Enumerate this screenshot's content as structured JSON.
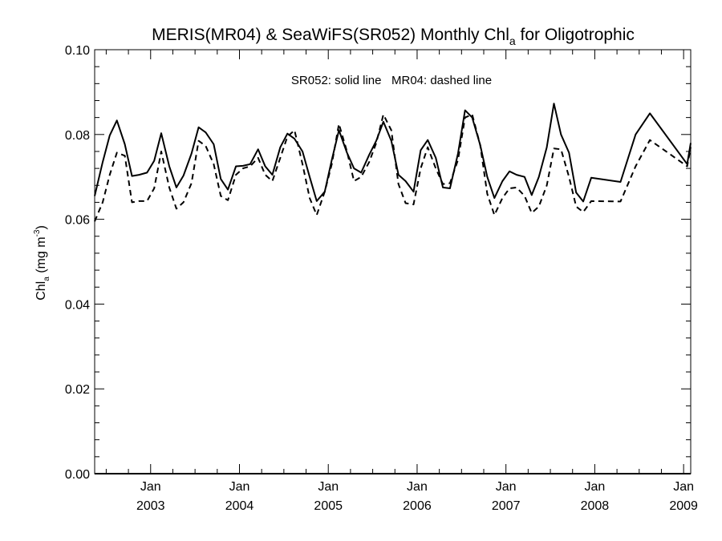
{
  "chart_data": {
    "type": "line",
    "title": {
      "main": "MERIS(MR04) & SeaWiFS(SR052) Monthly Chl",
      "subscript": "a",
      "suffix": " for Oligotrophic"
    },
    "ylabel": {
      "main": "Chl",
      "subscript": "a",
      "units_open": " (mg m",
      "units_sup": "-3",
      "units_close": ")"
    },
    "xlabel": "",
    "annotation": "SR052: solid line   MR04: dashed line",
    "x_unit": "year",
    "xlim": [
      2002.37,
      2009.08
    ],
    "ylim": [
      0.0,
      0.1
    ],
    "y_tick_labels": [
      "0.00",
      "0.02",
      "0.04",
      "0.06",
      "0.08",
      "0.10"
    ],
    "x_tick_labels": [
      {
        "month": "Jan",
        "year": "2003"
      },
      {
        "month": "Jan",
        "year": "2004"
      },
      {
        "month": "Jan",
        "year": "2005"
      },
      {
        "month": "Jan",
        "year": "2006"
      },
      {
        "month": "Jan",
        "year": "2007"
      },
      {
        "month": "Jan",
        "year": "2008"
      },
      {
        "month": "Jan",
        "year": "2009"
      }
    ],
    "grid": false,
    "series": [
      {
        "name": "SR052",
        "style": "solid",
        "color": "#000000",
        "x": [
          2002.37,
          2002.46,
          2002.54,
          2002.62,
          2002.71,
          2002.79,
          2002.87,
          2002.96,
          2003.04,
          2003.12,
          2003.21,
          2003.29,
          2003.37,
          2003.46,
          2003.54,
          2003.62,
          2003.71,
          2003.79,
          2003.87,
          2003.96,
          2004.04,
          2004.12,
          2004.21,
          2004.29,
          2004.37,
          2004.46,
          2004.54,
          2004.62,
          2004.71,
          2004.79,
          2004.87,
          2004.96,
          2005.04,
          2005.12,
          2005.21,
          2005.29,
          2005.37,
          2005.46,
          2005.54,
          2005.62,
          2005.71,
          2005.79,
          2005.87,
          2005.96,
          2006.04,
          2006.12,
          2006.21,
          2006.29,
          2006.37,
          2006.46,
          2006.54,
          2006.62,
          2006.71,
          2006.79,
          2006.87,
          2006.96,
          2007.04,
          2007.12,
          2007.21,
          2007.29,
          2007.37,
          2007.46,
          2007.54,
          2007.62,
          2007.71,
          2007.79,
          2007.87,
          2007.96,
          2008.29,
          2008.46,
          2008.62,
          2009.04,
          2009.08
        ],
        "y": [
          0.0655,
          0.0735,
          0.0798,
          0.0833,
          0.0777,
          0.0702,
          0.0705,
          0.071,
          0.0738,
          0.0803,
          0.0725,
          0.0675,
          0.0703,
          0.0755,
          0.0817,
          0.0805,
          0.0777,
          0.0695,
          0.067,
          0.0725,
          0.0726,
          0.073,
          0.0765,
          0.0725,
          0.0705,
          0.077,
          0.0802,
          0.079,
          0.076,
          0.07,
          0.0643,
          0.0665,
          0.074,
          0.081,
          0.0757,
          0.072,
          0.071,
          0.0752,
          0.0785,
          0.083,
          0.0785,
          0.0705,
          0.069,
          0.0665,
          0.0763,
          0.0787,
          0.0745,
          0.0675,
          0.0673,
          0.0755,
          0.0857,
          0.084,
          0.0775,
          0.07,
          0.065,
          0.069,
          0.0713,
          0.0705,
          0.07,
          0.0657,
          0.07,
          0.077,
          0.0873,
          0.08,
          0.0757,
          0.0663,
          0.0642,
          0.0698,
          0.0688,
          0.08,
          0.085,
          0.073,
          0.078
        ]
      },
      {
        "name": "MR04",
        "style": "dashed",
        "color": "#000000",
        "x": [
          2002.37,
          2002.46,
          2002.54,
          2002.62,
          2002.71,
          2002.79,
          2002.87,
          2002.96,
          2003.04,
          2003.12,
          2003.21,
          2003.29,
          2003.37,
          2003.46,
          2003.54,
          2003.62,
          2003.71,
          2003.79,
          2003.87,
          2003.96,
          2004.04,
          2004.12,
          2004.21,
          2004.29,
          2004.37,
          2004.46,
          2004.54,
          2004.62,
          2004.71,
          2004.79,
          2004.87,
          2004.96,
          2005.04,
          2005.12,
          2005.21,
          2005.29,
          2005.37,
          2005.46,
          2005.54,
          2005.62,
          2005.71,
          2005.79,
          2005.87,
          2005.96,
          2006.04,
          2006.12,
          2006.21,
          2006.29,
          2006.37,
          2006.46,
          2006.54,
          2006.62,
          2006.71,
          2006.79,
          2006.87,
          2006.96,
          2007.04,
          2007.12,
          2007.21,
          2007.29,
          2007.37,
          2007.46,
          2007.54,
          2007.62,
          2007.71,
          2007.79,
          2007.87,
          2007.96,
          2008.29,
          2008.46,
          2008.62,
          2009.04,
          2009.08
        ],
        "y": [
          0.0595,
          0.064,
          0.0705,
          0.0757,
          0.075,
          0.064,
          0.0643,
          0.0643,
          0.0673,
          0.076,
          0.0675,
          0.0625,
          0.064,
          0.0685,
          0.0785,
          0.0773,
          0.073,
          0.0655,
          0.0645,
          0.0705,
          0.072,
          0.0725,
          0.0745,
          0.0705,
          0.069,
          0.0745,
          0.0795,
          0.081,
          0.073,
          0.065,
          0.061,
          0.0665,
          0.073,
          0.0825,
          0.076,
          0.069,
          0.07,
          0.0735,
          0.078,
          0.0847,
          0.081,
          0.0683,
          0.0638,
          0.0635,
          0.072,
          0.077,
          0.072,
          0.0683,
          0.0685,
          0.074,
          0.084,
          0.0847,
          0.0775,
          0.066,
          0.061,
          0.065,
          0.0673,
          0.0675,
          0.0655,
          0.0615,
          0.063,
          0.068,
          0.0767,
          0.0765,
          0.07,
          0.063,
          0.0617,
          0.0643,
          0.0642,
          0.0725,
          0.0787,
          0.0725,
          0.077
        ]
      }
    ]
  }
}
